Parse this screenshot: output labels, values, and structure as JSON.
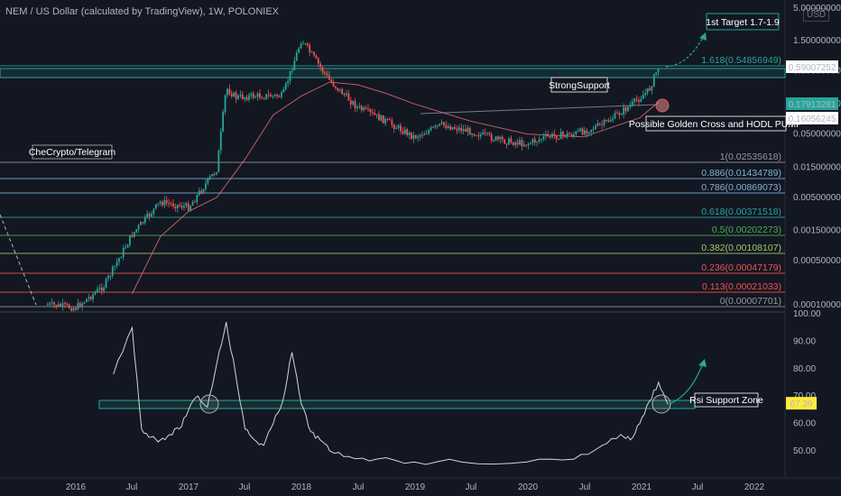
{
  "header": {
    "title": "NEM / US Dollar (calculated by TradingView), 1W, POLONIEX",
    "currency": "USD"
  },
  "annotations": {
    "first_target": "1st Target 1.7-1.9",
    "strong_support": "StrongSupport",
    "golden_cross": "Possible Golden Cross and HODL PUMP",
    "checrypto": "CheCrypto/Telegram",
    "rsi_zone": "Rsi Support Zone"
  },
  "price_axis": {
    "ticks": [
      "5.00000000",
      "1.50000000",
      "0.50000000",
      "0.15000000",
      "0.05000000",
      "0.01500000",
      "0.00500000",
      "0.00150000",
      "0.00050000",
      "0.00010000"
    ],
    "tags": [
      {
        "value": "0.59007252",
        "color": "#ffffff",
        "bg": "#ffffff",
        "text_color": "#131722"
      },
      {
        "value": "0.17913281",
        "color": "#26a69a",
        "bg": "#26a69a",
        "text_color": "#ffffff"
      },
      {
        "value": "0.16056245",
        "color": "#ffffff",
        "bg": "#ffffff",
        "text_color": "#131722"
      }
    ]
  },
  "fib_levels": [
    {
      "label": "1.618(0.54856949)",
      "color": "#26a69a"
    },
    {
      "label": "1(0.02535618)",
      "color": "#9598a1"
    },
    {
      "label": "0.886(0.01434789)",
      "color": "#7fb2d9"
    },
    {
      "label": "0.786(0.00869073)",
      "color": "#7fb2d9"
    },
    {
      "label": "0.618(0.00371518)",
      "color": "#26a69a"
    },
    {
      "label": "0.5(0.00202273)",
      "color": "#4caf50"
    },
    {
      "label": "0.382(0.00108107)",
      "color": "#9ccc65"
    },
    {
      "label": "0.236(0.00047179)",
      "color": "#ef5350"
    },
    {
      "label": "0.113(0.00021033)",
      "color": "#ef5350"
    },
    {
      "label": "0(0.00007701)",
      "color": "#9598a1"
    }
  ],
  "rsi_axis": {
    "ticks": [
      "100.00",
      "90.00",
      "80.00",
      "70.00",
      "60.00",
      "50.00"
    ],
    "current": "67.39"
  },
  "time_axis": {
    "labels": [
      "2016",
      "Jul",
      "2017",
      "Jul",
      "2018",
      "Jul",
      "2019",
      "Jul",
      "2020",
      "Jul",
      "2021",
      "Jul",
      "2022"
    ]
  },
  "chart_data": {
    "type": "line",
    "series": [
      {
        "x": [
          "2015-10",
          "2016-01",
          "2016-04",
          "2016-07",
          "2016-10",
          "2017-01",
          "2017-04",
          "2017-05",
          "2017-06",
          "2017-08",
          "2017-11",
          "2018-01",
          "2018-04",
          "2018-07",
          "2018-10",
          "2019-01",
          "2019-04",
          "2019-07",
          "2019-10",
          "2020-01",
          "2020-03",
          "2020-06",
          "2020-09",
          "2020-12",
          "2021-02",
          "2021-03"
        ],
        "values": [
          0.0001,
          9e-05,
          0.0002,
          0.0013,
          0.0042,
          0.0035,
          0.014,
          0.27,
          0.19,
          0.2,
          0.2,
          1.55,
          0.35,
          0.13,
          0.08,
          0.045,
          0.07,
          0.055,
          0.04,
          0.035,
          0.045,
          0.05,
          0.07,
          0.14,
          0.25,
          0.59
        ]
      },
      {
        "x": [
          "2016-07",
          "2016-10",
          "2017-01",
          "2017-04",
          "2017-07",
          "2017-10",
          "2018-01",
          "2018-04",
          "2018-07",
          "2018-10",
          "2019-01",
          "2019-07",
          "2020-01",
          "2020-07",
          "2021-01",
          "2021-03"
        ],
        "values": [
          0.00015,
          0.0012,
          0.003,
          0.005,
          0.02,
          0.1,
          0.2,
          0.33,
          0.3,
          0.22,
          0.15,
          0.08,
          0.05,
          0.045,
          0.09,
          0.16
        ]
      },
      {
        "x": [
          "2016-05",
          "2016-07",
          "2016-08",
          "2016-09",
          "2016-10",
          "2016-11",
          "2016-12",
          "2017-01",
          "2017-02",
          "2017-03",
          "2017-04",
          "2017-05",
          "2017-06",
          "2017-07",
          "2017-08",
          "2017-09",
          "2017-10",
          "2017-11",
          "2017-12",
          "2018-01",
          "2018-02",
          "2018-03",
          "2018-04",
          "2018-06",
          "2018-09",
          "2019-01",
          "2019-06",
          "2020-01",
          "2020-06",
          "2020-09",
          "2020-11",
          "2020-12",
          "2021-01",
          "2021-02",
          "2021-03",
          "2021-04"
        ],
        "values": [
          78,
          95,
          58,
          55,
          54,
          56,
          58,
          65,
          70,
          66,
          82,
          97,
          78,
          58,
          54,
          52,
          60,
          68,
          86,
          67,
          57,
          54,
          50,
          48,
          47,
          46,
          46,
          46,
          47,
          52,
          56,
          54,
          60,
          68,
          75,
          67
        ]
      }
    ],
    "ylim": [
      7e-05,
      6
    ],
    "log_scale": true,
    "grid": false
  }
}
